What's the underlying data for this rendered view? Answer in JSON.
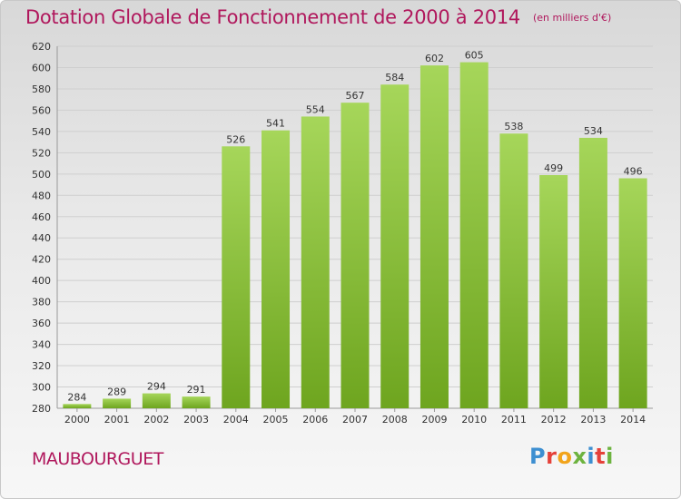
{
  "header": {
    "title": "Dotation Globale de Fonctionnement de 2000 à 2014",
    "unit": "(en milliers d'€)"
  },
  "footer": {
    "commune": "MAUBOURGUET",
    "logo_text": "Proxiti"
  },
  "colors": {
    "title": "#b0175c",
    "bar_light": "#a6d65a",
    "bar_dark": "#6ea51f",
    "logo_letters": [
      "#3d8fd1",
      "#e5413a",
      "#f2a41b",
      "#6db33f",
      "#3d8fd1",
      "#e5413a",
      "#6db33f"
    ]
  },
  "chart_data": {
    "type": "bar",
    "title": "Dotation Globale de Fonctionnement de 2000 à 2014",
    "categories": [
      "2000",
      "2001",
      "2002",
      "2003",
      "2004",
      "2005",
      "2006",
      "2007",
      "2008",
      "2009",
      "2010",
      "2011",
      "2012",
      "2013",
      "2014"
    ],
    "values": [
      284,
      289,
      294,
      291,
      526,
      541,
      554,
      567,
      584,
      602,
      605,
      538,
      499,
      534,
      496
    ],
    "ylim": [
      280,
      620
    ],
    "yticks": [
      280,
      300,
      320,
      340,
      360,
      380,
      400,
      420,
      440,
      460,
      480,
      500,
      520,
      540,
      560,
      580,
      600,
      620
    ],
    "grid": true,
    "data_labels": true
  }
}
